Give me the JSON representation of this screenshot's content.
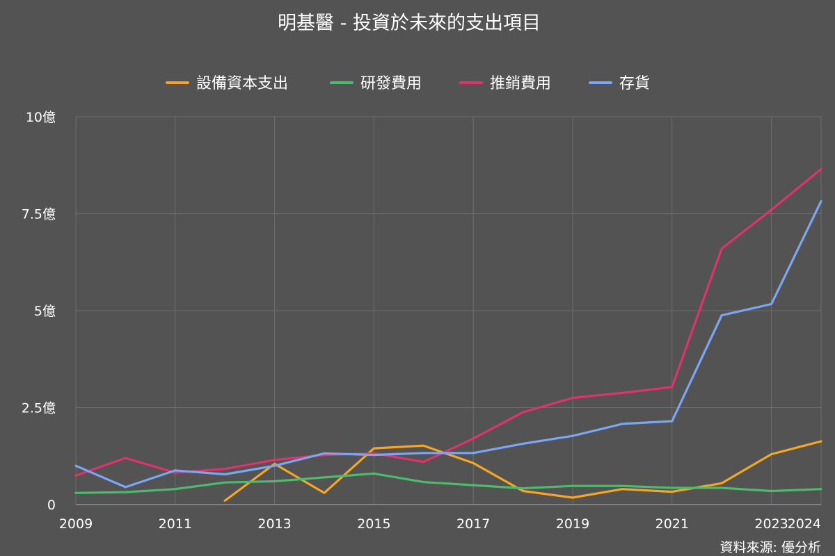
{
  "chart_data": {
    "type": "line",
    "title": "明基醫 - 投資於未來的支出項目",
    "source": "資料來源: 優分析",
    "legend_position": "top",
    "grid": true,
    "x": [
      2009,
      2010,
      2011,
      2012,
      2013,
      2014,
      2015,
      2016,
      2017,
      2018,
      2019,
      2020,
      2021,
      2022,
      2023,
      2024
    ],
    "x_tick_values": [
      2009,
      2011,
      2013,
      2015,
      2017,
      2019,
      2021,
      2023,
      2024
    ],
    "x_tick_labels": [
      "2009",
      "2011",
      "2013",
      "2015",
      "2017",
      "2019",
      "2021",
      "2023",
      "2024"
    ],
    "xlim": [
      2009,
      2024
    ],
    "ylim": [
      0,
      10
    ],
    "y_tick_values": [
      0,
      2.5,
      5,
      7.5,
      10
    ],
    "y_tick_labels": [
      "0",
      "2.5億",
      "5億",
      "7.5億",
      "10億"
    ],
    "y_unit": "億",
    "series": [
      {
        "name": "設備資本支出",
        "color": "#f5a623",
        "values": [
          null,
          null,
          null,
          0.1,
          1.05,
          0.3,
          1.45,
          1.52,
          1.07,
          0.35,
          0.18,
          0.4,
          0.33,
          0.55,
          1.3,
          1.63
        ]
      },
      {
        "name": "研發費用",
        "color": "#4cbb6c",
        "values": [
          0.3,
          0.32,
          0.4,
          0.57,
          0.6,
          0.7,
          0.8,
          0.58,
          0.5,
          0.42,
          0.48,
          0.48,
          0.43,
          0.43,
          0.35,
          0.4
        ]
      },
      {
        "name": "推銷費用",
        "color": "#e0336b",
        "values": [
          0.75,
          1.2,
          0.82,
          0.92,
          1.15,
          1.28,
          1.32,
          1.1,
          1.7,
          2.38,
          2.75,
          2.88,
          3.03,
          6.6,
          7.6,
          8.65
        ]
      },
      {
        "name": "存貨",
        "color": "#7aa6f5",
        "values": [
          1.0,
          0.45,
          0.88,
          0.78,
          1.0,
          1.32,
          1.28,
          1.33,
          1.33,
          1.57,
          1.77,
          2.08,
          2.15,
          4.88,
          5.17,
          7.82
        ]
      }
    ]
  }
}
